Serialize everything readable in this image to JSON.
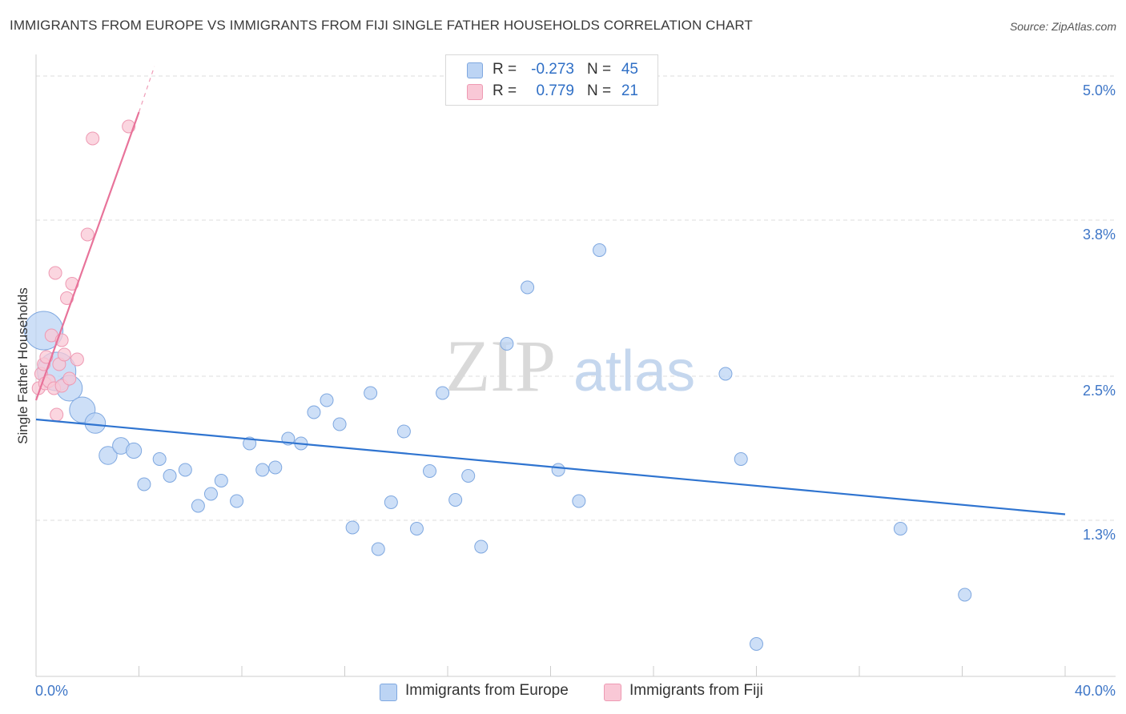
{
  "title": "IMMIGRANTS FROM EUROPE VS IMMIGRANTS FROM FIJI SINGLE FATHER HOUSEHOLDS CORRELATION CHART",
  "source": "Source: ZipAtlas.com",
  "watermark": {
    "zip": "ZIP",
    "atlas": "atlas"
  },
  "legend": {
    "europe": {
      "r_label": "R =",
      "r_value": "-0.273",
      "n_label": "N =",
      "n_value": "45"
    },
    "fiji": {
      "r_label": "R =",
      "r_value": "0.779",
      "n_label": "N =",
      "n_value": "21"
    }
  },
  "bottom_legend": {
    "europe": "Immigrants from Europe",
    "fiji": "Immigrants from Fiji"
  },
  "colors": {
    "europe_fill": "#bcd4f4",
    "europe_stroke": "#7fa8e0",
    "europe_line": "#2f74d0",
    "fiji_fill": "#f9c8d6",
    "fiji_stroke": "#ee9ab3",
    "fiji_line": "#e8739a",
    "tick_text": "#3e76c7",
    "grid": "#dddddd"
  },
  "chart_data": {
    "type": "scatter",
    "title": "IMMIGRANTS FROM EUROPE VS IMMIGRANTS FROM FIJI SINGLE FATHER HOUSEHOLDS CORRELATION CHART",
    "xlabel": "",
    "ylabel": "Single Father Households",
    "xlim": [
      0,
      40
    ],
    "ylim": [
      0.0,
      5.1
    ],
    "x_tick_labels": [
      {
        "value": 0,
        "label": "0.0%"
      },
      {
        "value": 40,
        "label": "40.0%"
      }
    ],
    "y_ticks": [
      {
        "value": 1.3,
        "label": "1.3%"
      },
      {
        "value": 2.5,
        "label": "2.5%"
      },
      {
        "value": 3.8,
        "label": "3.8%"
      },
      {
        "value": 5.0,
        "label": "5.0%"
      }
    ],
    "series": [
      {
        "name": "Immigrants from Europe",
        "points": [
          [
            0.3,
            2.88,
            3
          ],
          [
            0.8,
            2.54,
            3
          ],
          [
            1.3,
            2.4,
            2
          ],
          [
            1.8,
            2.22,
            2
          ],
          [
            2.3,
            2.11,
            1.6
          ],
          [
            2.8,
            1.84,
            1.4
          ],
          [
            3.3,
            1.92,
            1.3
          ],
          [
            3.8,
            1.88,
            1.2
          ],
          [
            4.2,
            1.6,
            1
          ],
          [
            4.8,
            1.81,
            1
          ],
          [
            5.2,
            1.67,
            1
          ],
          [
            5.8,
            1.72,
            1
          ],
          [
            6.3,
            1.42,
            1
          ],
          [
            6.8,
            1.52,
            1
          ],
          [
            7.2,
            1.63,
            1
          ],
          [
            7.8,
            1.46,
            1
          ],
          [
            8.3,
            1.94,
            1
          ],
          [
            8.8,
            1.72,
            1
          ],
          [
            9.3,
            1.74,
            1
          ],
          [
            9.8,
            1.98,
            1
          ],
          [
            10.3,
            1.94,
            1
          ],
          [
            10.8,
            2.2,
            1
          ],
          [
            11.3,
            2.3,
            1
          ],
          [
            11.8,
            2.1,
            1
          ],
          [
            12.3,
            1.24,
            1
          ],
          [
            13.0,
            2.36,
            1
          ],
          [
            13.3,
            1.06,
            1
          ],
          [
            13.8,
            1.45,
            1
          ],
          [
            14.3,
            2.04,
            1
          ],
          [
            14.8,
            1.23,
            1
          ],
          [
            15.3,
            1.71,
            1
          ],
          [
            15.8,
            2.36,
            1
          ],
          [
            16.3,
            1.47,
            1
          ],
          [
            16.8,
            1.67,
            1
          ],
          [
            17.3,
            1.08,
            1
          ],
          [
            18.3,
            2.77,
            1
          ],
          [
            19.1,
            3.24,
            1
          ],
          [
            20.3,
            1.72,
            1
          ],
          [
            21.1,
            1.46,
            1
          ],
          [
            21.9,
            3.55,
            1
          ],
          [
            26.8,
            2.52,
            1
          ],
          [
            27.4,
            1.81,
            1
          ],
          [
            28.0,
            0.27,
            1
          ],
          [
            33.6,
            1.23,
            1
          ],
          [
            36.1,
            0.68,
            1
          ]
        ]
      },
      {
        "name": "Immigrants from Fiji",
        "points": [
          [
            0.1,
            2.4,
            1
          ],
          [
            0.2,
            2.52,
            1
          ],
          [
            0.3,
            2.6,
            1
          ],
          [
            0.35,
            2.44,
            1
          ],
          [
            0.4,
            2.66,
            1
          ],
          [
            0.5,
            2.46,
            1
          ],
          [
            0.6,
            2.84,
            1
          ],
          [
            0.7,
            2.4,
            1
          ],
          [
            0.75,
            3.36,
            1
          ],
          [
            0.8,
            2.18,
            1
          ],
          [
            0.9,
            2.6,
            1
          ],
          [
            1.0,
            2.42,
            1
          ],
          [
            1.0,
            2.8,
            1
          ],
          [
            1.1,
            2.68,
            1
          ],
          [
            1.2,
            3.15,
            1
          ],
          [
            1.3,
            2.48,
            1
          ],
          [
            1.4,
            3.27,
            1
          ],
          [
            1.6,
            2.64,
            1
          ],
          [
            2.0,
            3.68,
            1
          ],
          [
            2.2,
            4.48,
            1
          ],
          [
            3.6,
            4.58,
            1
          ]
        ]
      }
    ],
    "trendlines": [
      {
        "series": "Immigrants from Europe",
        "x": [
          0,
          40
        ],
        "y": [
          2.14,
          1.35
        ]
      },
      {
        "series": "Immigrants from Fiji",
        "x": [
          0,
          4.0
        ],
        "y": [
          2.3,
          4.7
        ],
        "dashed_to": [
          4.6,
          5.08
        ]
      }
    ]
  }
}
